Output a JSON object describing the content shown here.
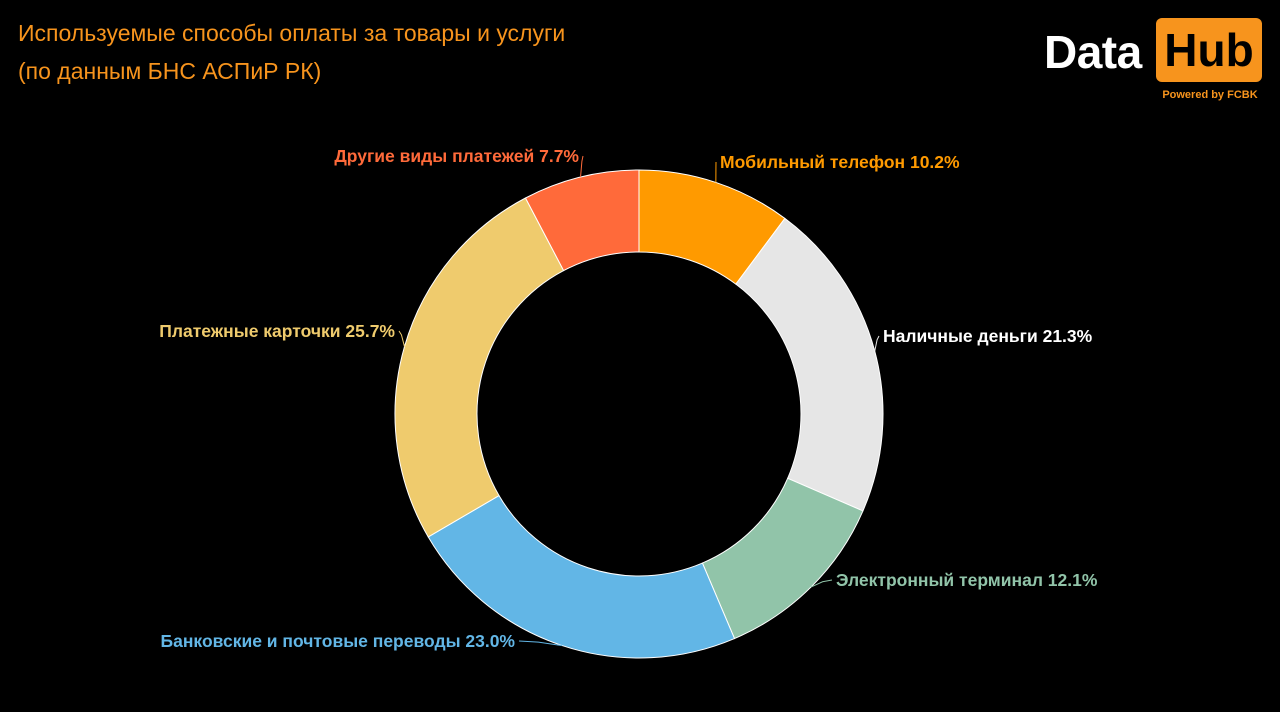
{
  "chart_data": {
    "type": "pie",
    "title_lines": [
      "Используемые способы оплаты за товары и услуги",
      "(по данным БНС АСПиР РК)"
    ],
    "unit": "%",
    "slices": [
      {
        "label": "Мобильный телефон",
        "value": 10.2,
        "color": "#ff9a00",
        "display": "Мобильный телефон 10.2%"
      },
      {
        "label": "Наличные деньги",
        "value": 21.3,
        "color": "#e6e6e6",
        "display": "Наличные деньги 21.3%"
      },
      {
        "label": "Электронный терминал",
        "value": 12.1,
        "color": "#91c4a9",
        "display": "Электронный терминал 12.1%"
      },
      {
        "label": "Банковские и почтовые переводы",
        "value": 23.0,
        "color": "#62b6e6",
        "display": "Банковские и почтовые переводы 23.0%"
      },
      {
        "label": "Платежные карточки",
        "value": 25.7,
        "color": "#efcb6d",
        "display": "Платежные карточки 25.7%"
      },
      {
        "label": "Другие виды платежей",
        "value": 7.7,
        "color": "#ff6a3a",
        "display": "Другие виды платежей 7.7%"
      }
    ],
    "donut": true,
    "start": "12 o'clock",
    "direction": "clockwise"
  },
  "logo": {
    "data": "Data",
    "hub": "Hub",
    "powered": "Powered by FCBK",
    "accent": "#f7941d"
  }
}
